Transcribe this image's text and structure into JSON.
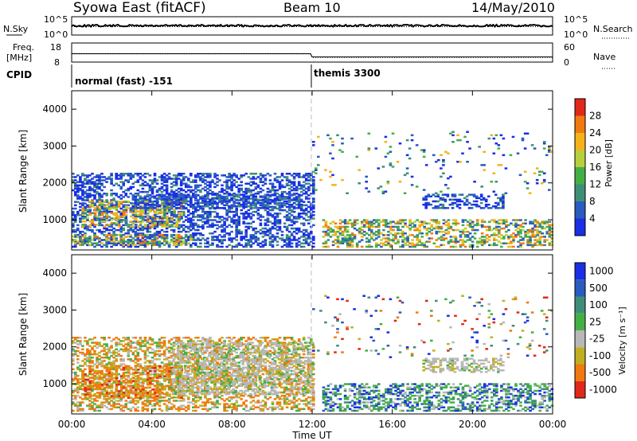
{
  "header": {
    "station_label": "Syowa East (fitACF)",
    "beam_label": "Beam 10",
    "date_label": "14/May/2010"
  },
  "noise_panel": {
    "left_label": "N.Sky",
    "right_label": "N.Search",
    "left_ticks": [
      "10^5",
      "10^0"
    ],
    "right_ticks": [
      "10^5",
      "10^0"
    ]
  },
  "freq_panel": {
    "left_label_line1": "Freq.",
    "left_label_line2": "[MHz]",
    "left_ticks": [
      "18",
      "8"
    ],
    "right_label": "Nave",
    "right_ticks": [
      "60",
      "0"
    ]
  },
  "cpid": {
    "label": "CPID",
    "segments": [
      {
        "name": "normal (fast) -151",
        "start_hour": 0,
        "end_hour": 12
      },
      {
        "name": "themis 3300",
        "start_hour": 12,
        "end_hour": 24
      }
    ]
  },
  "x_axis": {
    "label": "Time UT",
    "ticks": [
      "00:00",
      "04:00",
      "08:00",
      "12:00",
      "16:00",
      "20:00",
      "00:00"
    ]
  },
  "colors": {
    "power_scale": [
      "#1a2fe6",
      "#2a5cc0",
      "#3f8f78",
      "#43b046",
      "#b8d03c",
      "#f6b21a",
      "#f07a10",
      "#e22818"
    ],
    "velocity_scale": [
      "#1a2fe6",
      "#2a5cc0",
      "#3f8f78",
      "#43b046",
      "#b8b8b8",
      "#c0b020",
      "#f07a10",
      "#e22818"
    ]
  },
  "chart_data": [
    {
      "type": "heatmap",
      "panel": "power",
      "ylabel": "Slant Range [km]",
      "ylim": [
        180,
        4500
      ],
      "y_ticks": [
        1000,
        2000,
        3000,
        4000
      ],
      "xlim_hours": [
        0,
        24
      ],
      "colorbar": {
        "label": "Power [dB]",
        "range": [
          0,
          32
        ],
        "ticks": [
          "4",
          "8",
          "12",
          "16",
          "20",
          "24",
          "28"
        ]
      },
      "echo_regions": [
        {
          "t0": 0.0,
          "t1": 12.0,
          "r0": 250,
          "r1": 2250,
          "level": "low-mid"
        },
        {
          "t0": 0.5,
          "t1": 5.5,
          "r0": 800,
          "r1": 1500,
          "level": "high"
        },
        {
          "t0": 0.0,
          "t1": 6.0,
          "r0": 300,
          "r1": 600,
          "level": "mid"
        },
        {
          "t0": 3.0,
          "t1": 11.5,
          "r0": 1300,
          "r1": 1700,
          "level": "low"
        },
        {
          "t0": 12.5,
          "t1": 24.0,
          "r0": 250,
          "r1": 1000,
          "level": "mid"
        },
        {
          "t0": 17.5,
          "t1": 21.5,
          "r0": 1300,
          "r1": 1700,
          "level": "low-mid"
        },
        {
          "t0": 12.0,
          "t1": 24.0,
          "r0": 1700,
          "r1": 3400,
          "level": "sparse"
        }
      ]
    },
    {
      "type": "heatmap",
      "panel": "velocity",
      "ylabel": "Slant Range [km]",
      "ylim": [
        180,
        4500
      ],
      "y_ticks": [
        1000,
        2000,
        3000,
        4000
      ],
      "xlim_hours": [
        0,
        24
      ],
      "colorbar": {
        "label": "Velocity [m s⁻¹]",
        "ticks": [
          "1000",
          "500",
          "100",
          "25",
          "-25",
          "-100",
          "-500",
          "-1000"
        ]
      },
      "echo_regions": [
        {
          "t0": 0.0,
          "t1": 12.0,
          "r0": 250,
          "r1": 2250,
          "level": "negative"
        },
        {
          "t0": 0.5,
          "t1": 5.5,
          "r0": 600,
          "r1": 1500,
          "level": "strong-negative"
        },
        {
          "t0": 5.0,
          "t1": 12.0,
          "r0": 700,
          "r1": 2100,
          "level": "ground-scatter"
        },
        {
          "t0": 12.5,
          "t1": 24.0,
          "r0": 250,
          "r1": 1000,
          "level": "positive"
        },
        {
          "t0": 17.5,
          "t1": 21.5,
          "r0": 1300,
          "r1": 1700,
          "level": "ground-scatter"
        },
        {
          "t0": 12.0,
          "t1": 24.0,
          "r0": 1700,
          "r1": 3400,
          "level": "sparse"
        }
      ]
    }
  ]
}
